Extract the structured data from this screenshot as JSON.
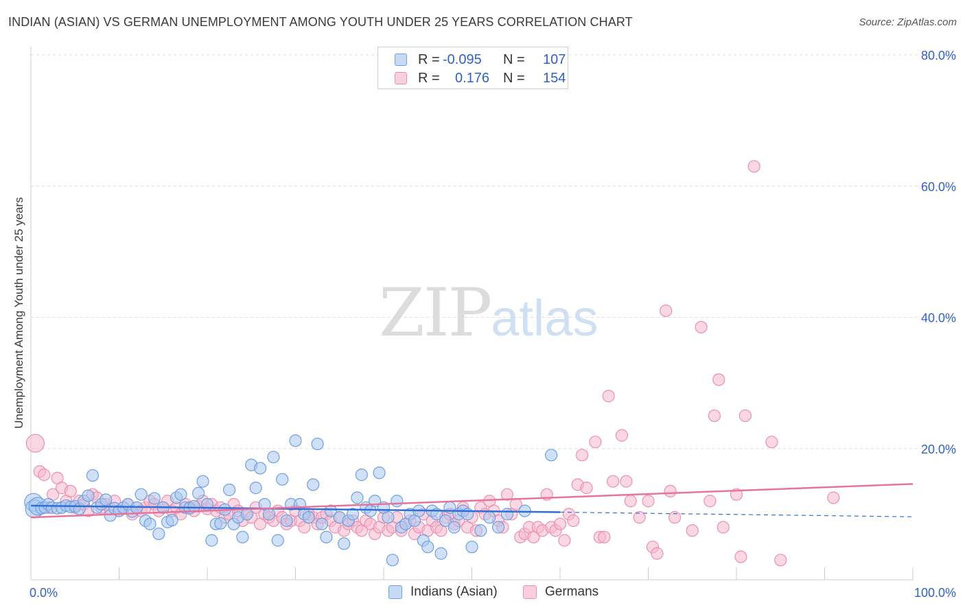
{
  "title": "INDIAN (ASIAN) VS GERMAN UNEMPLOYMENT AMONG YOUTH UNDER 25 YEARS CORRELATION CHART",
  "source": "Source: ZipAtlas.com",
  "watermark": {
    "zip": "ZIP",
    "atlas": "atlas"
  },
  "legend": {
    "rows": [
      {
        "r_label": "R =",
        "r_value": "-0.095",
        "n_label": "N =",
        "n_value": "107"
      },
      {
        "r_label": "R =",
        "r_value": "0.176",
        "n_label": "N =",
        "n_value": "154"
      }
    ]
  },
  "colors": {
    "blue_fill": "#a9c8f0",
    "blue_stroke": "#6f9fe0",
    "blue_line": "#2f6fd6",
    "pink_fill": "#f5b8cc",
    "pink_stroke": "#ec8fae",
    "pink_line": "#e8739a",
    "axis_label": "#2f62c7",
    "grid": "#dddddd"
  },
  "chart_data": {
    "type": "scatter",
    "title": "INDIAN (ASIAN) VS GERMAN UNEMPLOYMENT AMONG YOUTH UNDER 25 YEARS CORRELATION CHART",
    "xlabel": "",
    "ylabel": "Unemployment Among Youth under 25 years",
    "xlim": [
      0,
      100
    ],
    "ylim": [
      0,
      80
    ],
    "x_tick_labels": [
      "0.0%",
      "100.0%"
    ],
    "y_tick_labels": [
      "20.0%",
      "40.0%",
      "60.0%",
      "80.0%"
    ],
    "y_ticks": [
      20,
      40,
      60,
      80
    ],
    "grid": true,
    "legend_placement": "bottom-center",
    "series": [
      {
        "name": "Indians (Asian)",
        "color": "#a9c8f0",
        "trend": {
          "x": [
            0,
            60
          ],
          "y": [
            11.3,
            10.3
          ],
          "dashed_to": [
            100,
            9.6
          ]
        },
        "points": [
          [
            0.3,
            11.8
          ],
          [
            0.4,
            10.8
          ],
          [
            0.8,
            11.2
          ],
          [
            1.2,
            10.9
          ],
          [
            1.6,
            11.0
          ],
          [
            2.0,
            11.5
          ],
          [
            2.4,
            11.0
          ],
          [
            3.0,
            10.9
          ],
          [
            3.5,
            11.0
          ],
          [
            4.0,
            11.3
          ],
          [
            4.5,
            11.1
          ],
          [
            5.0,
            11.2
          ],
          [
            5.5,
            10.8
          ],
          [
            6.0,
            12.0
          ],
          [
            6.5,
            12.8
          ],
          [
            7.0,
            15.9
          ],
          [
            7.5,
            11.0
          ],
          [
            8.0,
            11.5
          ],
          [
            8.5,
            12.2
          ],
          [
            9.0,
            9.8
          ],
          [
            9.5,
            10.9
          ],
          [
            10.0,
            10.5
          ],
          [
            10.5,
            11.0
          ],
          [
            11.0,
            11.5
          ],
          [
            11.5,
            10.4
          ],
          [
            12.0,
            11.0
          ],
          [
            12.5,
            13.0
          ],
          [
            13.0,
            9.0
          ],
          [
            13.5,
            8.5
          ],
          [
            14.0,
            12.4
          ],
          [
            14.5,
            7.0
          ],
          [
            15.0,
            11.0
          ],
          [
            15.5,
            8.8
          ],
          [
            16.0,
            9.1
          ],
          [
            16.5,
            12.5
          ],
          [
            17.0,
            13.0
          ],
          [
            17.5,
            11.0
          ],
          [
            18.0,
            10.9
          ],
          [
            18.5,
            11.2
          ],
          [
            19.0,
            13.2
          ],
          [
            19.5,
            15.0
          ],
          [
            20.0,
            11.5
          ],
          [
            20.5,
            6.0
          ],
          [
            21.0,
            8.5
          ],
          [
            21.5,
            8.6
          ],
          [
            22.0,
            10.7
          ],
          [
            22.5,
            13.7
          ],
          [
            23.0,
            8.5
          ],
          [
            23.5,
            9.5
          ],
          [
            24.0,
            6.5
          ],
          [
            24.5,
            10.0
          ],
          [
            25.0,
            17.5
          ],
          [
            25.5,
            14.0
          ],
          [
            26.0,
            17.0
          ],
          [
            26.5,
            11.5
          ],
          [
            27.0,
            10.0
          ],
          [
            27.5,
            18.7
          ],
          [
            28.0,
            6.0
          ],
          [
            28.5,
            15.3
          ],
          [
            29.0,
            9.0
          ],
          [
            29.5,
            11.5
          ],
          [
            30.0,
            21.2
          ],
          [
            30.5,
            11.5
          ],
          [
            31.0,
            10.0
          ],
          [
            31.5,
            9.5
          ],
          [
            32.0,
            14.5
          ],
          [
            32.5,
            20.7
          ],
          [
            33.0,
            8.5
          ],
          [
            33.5,
            6.5
          ],
          [
            34.0,
            10.5
          ],
          [
            35.0,
            9.5
          ],
          [
            35.5,
            5.5
          ],
          [
            36.0,
            9.0
          ],
          [
            36.5,
            10.0
          ],
          [
            37.0,
            12.5
          ],
          [
            37.5,
            16.0
          ],
          [
            38.0,
            11.0
          ],
          [
            38.5,
            10.5
          ],
          [
            39.0,
            12.0
          ],
          [
            39.5,
            16.3
          ],
          [
            40.0,
            11.0
          ],
          [
            40.5,
            9.5
          ],
          [
            41.0,
            3.0
          ],
          [
            41.5,
            12.0
          ],
          [
            42.0,
            8.0
          ],
          [
            42.5,
            8.5
          ],
          [
            43.0,
            10.0
          ],
          [
            43.5,
            9.0
          ],
          [
            44.0,
            10.5
          ],
          [
            44.5,
            6.0
          ],
          [
            45.0,
            5.0
          ],
          [
            45.5,
            10.5
          ],
          [
            46.0,
            10.0
          ],
          [
            46.5,
            4.0
          ],
          [
            47.0,
            9.0
          ],
          [
            47.5,
            11.0
          ],
          [
            48.0,
            8.0
          ],
          [
            48.5,
            10.0
          ],
          [
            49.0,
            10.5
          ],
          [
            49.5,
            10.0
          ],
          [
            50.0,
            5.0
          ],
          [
            51.0,
            7.5
          ],
          [
            52.0,
            9.5
          ],
          [
            53.0,
            8.0
          ],
          [
            54.0,
            10.0
          ],
          [
            56.0,
            10.5
          ],
          [
            59.0,
            19.0
          ]
        ]
      },
      {
        "name": "Germans",
        "color": "#f5b8cc",
        "trend": {
          "x": [
            0,
            100
          ],
          "y": [
            9.5,
            14.6
          ]
        },
        "points": [
          [
            0.5,
            20.8
          ],
          [
            1.0,
            16.5
          ],
          [
            1.5,
            16.0
          ],
          [
            2.0,
            11.0
          ],
          [
            2.5,
            13.0
          ],
          [
            3.0,
            15.5
          ],
          [
            3.5,
            14.0
          ],
          [
            4.0,
            12.0
          ],
          [
            4.5,
            13.5
          ],
          [
            5.0,
            11.0
          ],
          [
            5.5,
            12.0
          ],
          [
            6.0,
            11.5
          ],
          [
            6.5,
            10.5
          ],
          [
            7.0,
            13.0
          ],
          [
            7.5,
            12.5
          ],
          [
            8.0,
            11.0
          ],
          [
            8.5,
            11.5
          ],
          [
            9.0,
            10.8
          ],
          [
            9.5,
            12.0
          ],
          [
            10.0,
            10.5
          ],
          [
            10.5,
            11.0
          ],
          [
            11.0,
            11.5
          ],
          [
            11.5,
            10.0
          ],
          [
            12.0,
            11.0
          ],
          [
            12.5,
            10.5
          ],
          [
            13.0,
            11.0
          ],
          [
            13.5,
            12.0
          ],
          [
            14.0,
            11.5
          ],
          [
            14.5,
            10.5
          ],
          [
            15.0,
            11.0
          ],
          [
            15.5,
            12.0
          ],
          [
            16.0,
            10.5
          ],
          [
            16.5,
            11.0
          ],
          [
            17.0,
            10.0
          ],
          [
            17.5,
            11.5
          ],
          [
            18.0,
            11.0
          ],
          [
            18.5,
            10.5
          ],
          [
            19.0,
            11.2
          ],
          [
            19.5,
            12.0
          ],
          [
            20.0,
            10.8
          ],
          [
            20.5,
            11.5
          ],
          [
            21.0,
            10.5
          ],
          [
            21.5,
            11.0
          ],
          [
            22.0,
            9.5
          ],
          [
            22.5,
            10.0
          ],
          [
            23.0,
            11.5
          ],
          [
            23.5,
            10.5
          ],
          [
            24.0,
            9.0
          ],
          [
            24.5,
            10.0
          ],
          [
            25.0,
            9.5
          ],
          [
            25.5,
            11.0
          ],
          [
            26.0,
            8.5
          ],
          [
            26.5,
            10.0
          ],
          [
            27.0,
            9.5
          ],
          [
            27.5,
            9.0
          ],
          [
            28.0,
            10.5
          ],
          [
            28.5,
            9.5
          ],
          [
            29.0,
            8.5
          ],
          [
            29.5,
            9.0
          ],
          [
            30.0,
            10.5
          ],
          [
            30.5,
            9.0
          ],
          [
            31.0,
            8.0
          ],
          [
            31.5,
            10.0
          ],
          [
            32.0,
            9.5
          ],
          [
            32.5,
            8.5
          ],
          [
            33.0,
            9.5
          ],
          [
            33.5,
            10.0
          ],
          [
            34.0,
            9.0
          ],
          [
            34.5,
            8.0
          ],
          [
            35.0,
            9.5
          ],
          [
            35.5,
            7.5
          ],
          [
            36.0,
            8.5
          ],
          [
            36.5,
            9.0
          ],
          [
            37.0,
            8.0
          ],
          [
            37.5,
            7.5
          ],
          [
            38.0,
            9.0
          ],
          [
            38.5,
            8.5
          ],
          [
            39.0,
            7.0
          ],
          [
            39.5,
            8.0
          ],
          [
            40.0,
            9.5
          ],
          [
            40.5,
            7.5
          ],
          [
            41.0,
            8.0
          ],
          [
            41.5,
            9.5
          ],
          [
            42.0,
            7.5
          ],
          [
            42.5,
            8.5
          ],
          [
            43.0,
            9.0
          ],
          [
            43.5,
            7.0
          ],
          [
            44.0,
            8.0
          ],
          [
            44.5,
            10.0
          ],
          [
            45.0,
            7.5
          ],
          [
            45.5,
            9.0
          ],
          [
            46.0,
            8.0
          ],
          [
            46.5,
            7.5
          ],
          [
            47.0,
            9.5
          ],
          [
            47.5,
            10.0
          ],
          [
            48.0,
            8.5
          ],
          [
            48.5,
            9.0
          ],
          [
            49.0,
            11.0
          ],
          [
            49.5,
            8.0
          ],
          [
            50.0,
            9.5
          ],
          [
            50.5,
            7.5
          ],
          [
            51.0,
            11.0
          ],
          [
            51.5,
            10.0
          ],
          [
            52.0,
            12.0
          ],
          [
            52.5,
            10.5
          ],
          [
            53.0,
            9.0
          ],
          [
            53.5,
            8.0
          ],
          [
            54.0,
            13.0
          ],
          [
            54.5,
            10.0
          ],
          [
            55.0,
            11.5
          ],
          [
            55.5,
            6.5
          ],
          [
            56.0,
            7.0
          ],
          [
            56.5,
            8.0
          ],
          [
            57.0,
            6.5
          ],
          [
            57.5,
            8.0
          ],
          [
            58.0,
            7.5
          ],
          [
            58.5,
            13.0
          ],
          [
            59.0,
            8.0
          ],
          [
            59.5,
            7.5
          ],
          [
            60.0,
            8.5
          ],
          [
            60.5,
            6.0
          ],
          [
            61.0,
            10.0
          ],
          [
            61.5,
            9.0
          ],
          [
            62.0,
            14.5
          ],
          [
            62.5,
            19.0
          ],
          [
            63.0,
            14.0
          ],
          [
            64.0,
            21.0
          ],
          [
            64.5,
            6.5
          ],
          [
            65.0,
            6.5
          ],
          [
            65.5,
            28.0
          ],
          [
            66.0,
            15.0
          ],
          [
            67.0,
            22.0
          ],
          [
            67.5,
            15.0
          ],
          [
            68.0,
            12.0
          ],
          [
            69.0,
            9.5
          ],
          [
            70.0,
            12.0
          ],
          [
            70.5,
            5.0
          ],
          [
            71.0,
            4.0
          ],
          [
            72.0,
            41.0
          ],
          [
            72.5,
            13.5
          ],
          [
            73.0,
            9.5
          ],
          [
            75.0,
            7.5
          ],
          [
            76.0,
            38.5
          ],
          [
            77.0,
            12.0
          ],
          [
            77.5,
            25.0
          ],
          [
            78.0,
            30.5
          ],
          [
            78.5,
            8.0
          ],
          [
            80.0,
            13.0
          ],
          [
            80.5,
            3.5
          ],
          [
            81.0,
            25.0
          ],
          [
            82.0,
            63.0
          ],
          [
            84.0,
            21.0
          ],
          [
            85.0,
            3.0
          ],
          [
            91.0,
            12.5
          ]
        ]
      }
    ]
  },
  "bottom_legend": [
    {
      "label": "Indians (Asian)"
    },
    {
      "label": "Germans"
    }
  ]
}
